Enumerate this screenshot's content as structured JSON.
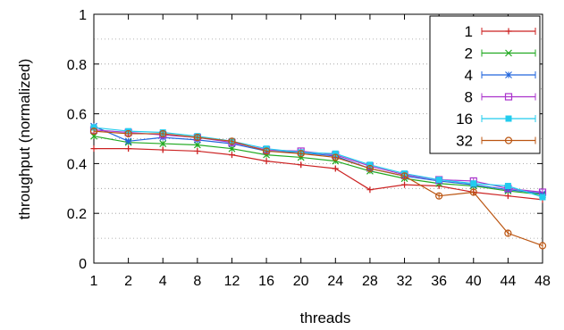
{
  "chart_data": {
    "type": "line",
    "xlabel": "threads",
    "ylabel": "throughput (normalized)",
    "categories": [
      "1",
      "2",
      "4",
      "8",
      "12",
      "16",
      "20",
      "24",
      "28",
      "32",
      "36",
      "40",
      "44",
      "48"
    ],
    "ylim": [
      0,
      1
    ],
    "yticks": [
      "0",
      "0.2",
      "0.4",
      "0.6",
      "0.8",
      "1"
    ],
    "grid": "horizontal-dotted",
    "legend_position": "top-right",
    "series": [
      {
        "name": "1",
        "color": "#cc2222",
        "marker": "plus",
        "values": [
          0.46,
          0.46,
          0.455,
          0.45,
          0.435,
          0.41,
          0.395,
          0.38,
          0.295,
          0.315,
          0.31,
          0.285,
          0.27,
          0.255
        ]
      },
      {
        "name": "2",
        "color": "#22aa22",
        "marker": "x",
        "values": [
          0.51,
          0.485,
          0.48,
          0.475,
          0.46,
          0.435,
          0.425,
          0.41,
          0.37,
          0.34,
          0.32,
          0.31,
          0.29,
          0.275
        ]
      },
      {
        "name": "4",
        "color": "#2266dd",
        "marker": "star",
        "values": [
          0.55,
          0.49,
          0.505,
          0.495,
          0.48,
          0.45,
          0.445,
          0.43,
          0.38,
          0.35,
          0.33,
          0.315,
          0.295,
          0.28
        ]
      },
      {
        "name": "8",
        "color": "#aa33cc",
        "marker": "square",
        "values": [
          0.535,
          0.525,
          0.515,
          0.505,
          0.485,
          0.455,
          0.45,
          0.435,
          0.39,
          0.355,
          0.335,
          0.33,
          0.3,
          0.285
        ]
      },
      {
        "name": "16",
        "color": "#22ccee",
        "marker": "filled-square",
        "values": [
          0.545,
          0.53,
          0.525,
          0.51,
          0.49,
          0.46,
          0.445,
          0.44,
          0.395,
          0.36,
          0.335,
          0.32,
          0.31,
          0.265
        ]
      },
      {
        "name": "32",
        "color": "#bb5511",
        "marker": "circle",
        "values": [
          0.53,
          0.52,
          0.52,
          0.505,
          0.49,
          0.45,
          0.44,
          0.425,
          0.38,
          0.35,
          0.27,
          0.285,
          0.12,
          0.07
        ]
      }
    ]
  }
}
